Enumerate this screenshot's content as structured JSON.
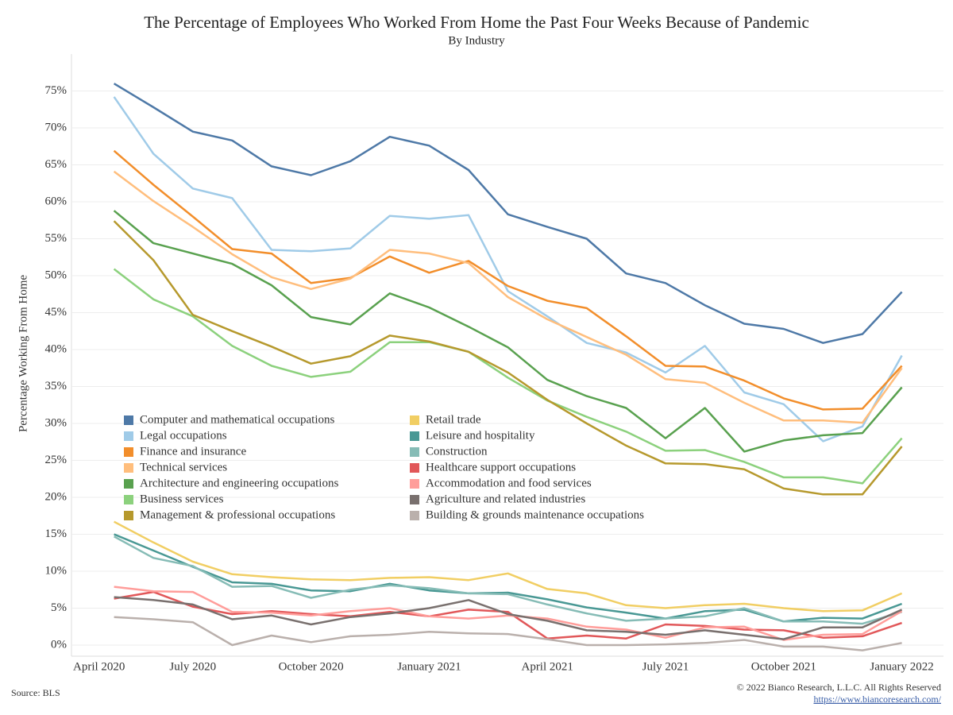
{
  "chart_data": {
    "type": "line",
    "title": "The Percentage of Employees Who Worked From Home the Past Four Weeks Because of Pandemic",
    "subtitle": "By Industry",
    "y_label": "Percentage Working From Home",
    "source": "Source: BLS",
    "copyright": "© 2022 Bianco Research, L.L.C. All Rights Reserved",
    "url": "https://www.biancoresearch.com/",
    "categories": [
      "April 2020",
      null,
      null,
      "July 2020",
      null,
      null,
      "October 2020",
      null,
      null,
      "January 2021",
      null,
      null,
      "April 2021",
      null,
      null,
      "July 2021",
      null,
      null,
      "October 2021",
      null,
      null,
      "January 2022"
    ],
    "ylim": [
      -1.5,
      80
    ],
    "yticks": [
      {
        "value": 0,
        "label": "0%"
      },
      {
        "value": 5,
        "label": "5%"
      },
      {
        "value": 10,
        "label": "10%"
      },
      {
        "value": 15,
        "label": "15%"
      },
      {
        "value": 20,
        "label": "20%"
      },
      {
        "value": 25,
        "label": "25%"
      },
      {
        "value": 30,
        "label": "30%"
      },
      {
        "value": 35,
        "label": "35%"
      },
      {
        "value": 40,
        "label": "40%"
      },
      {
        "value": 45,
        "label": "45%"
      },
      {
        "value": 50,
        "label": "50%"
      },
      {
        "value": 55,
        "label": "55%"
      },
      {
        "value": 60,
        "label": "60%"
      },
      {
        "value": 65,
        "label": "65%"
      },
      {
        "value": 70,
        "label": "70%"
      },
      {
        "value": 75,
        "label": "75%"
      }
    ],
    "grid": true,
    "series": [
      {
        "name": "Computer and mathematical occupations",
        "color": "#4e79a7",
        "values": [
          null,
          76.0,
          72.8,
          69.5,
          68.3,
          64.8,
          63.6,
          65.5,
          68.8,
          67.6,
          64.3,
          58.3,
          56.6,
          55.0,
          50.3,
          49.0,
          46.0,
          43.5,
          42.8,
          40.9,
          42.1,
          47.8
        ]
      },
      {
        "name": "Legal occupations",
        "color": "#a0cbe8",
        "values": [
          null,
          74.2,
          66.5,
          61.8,
          60.5,
          53.5,
          53.3,
          53.7,
          58.1,
          57.7,
          58.2,
          47.9,
          44.5,
          40.9,
          39.6,
          36.9,
          40.5,
          34.2,
          32.6,
          27.6,
          29.6,
          39.2
        ]
      },
      {
        "name": "Finance and insurance",
        "color": "#f28e2b",
        "values": [
          null,
          66.9,
          62.3,
          58.0,
          53.6,
          53.0,
          49.0,
          49.7,
          52.6,
          50.4,
          52.0,
          48.6,
          46.6,
          45.6,
          41.8,
          37.8,
          37.7,
          35.8,
          33.4,
          31.9,
          32.0,
          37.8
        ]
      },
      {
        "name": "Technical services",
        "color": "#ffbe7d",
        "values": [
          null,
          64.1,
          60.1,
          56.6,
          52.9,
          49.8,
          48.2,
          49.6,
          53.5,
          53.0,
          51.7,
          47.1,
          44.1,
          41.7,
          39.3,
          36.0,
          35.5,
          32.8,
          30.4,
          30.4,
          30.1,
          37.5
        ]
      },
      {
        "name": "Architecture and engineering occupations",
        "color": "#59a14f",
        "values": [
          null,
          58.8,
          54.4,
          53.0,
          51.6,
          48.7,
          44.4,
          43.4,
          47.6,
          45.7,
          43.1,
          40.3,
          35.9,
          33.7,
          32.1,
          28.0,
          32.1,
          26.2,
          27.7,
          28.4,
          28.7,
          34.9
        ]
      },
      {
        "name": "Business services",
        "color": "#8cd17d",
        "values": [
          null,
          50.9,
          46.8,
          44.5,
          40.5,
          37.8,
          36.3,
          37.0,
          41.0,
          41.0,
          39.7,
          36.2,
          33.1,
          30.9,
          28.9,
          26.3,
          26.4,
          24.8,
          22.7,
          22.7,
          21.9,
          28.0
        ]
      },
      {
        "name": "Management & professional occupations",
        "color": "#b6992d",
        "values": [
          null,
          57.4,
          52.1,
          44.7,
          42.5,
          40.4,
          38.1,
          39.1,
          41.9,
          41.1,
          39.7,
          36.9,
          33.2,
          30.0,
          27.0,
          24.6,
          24.5,
          23.8,
          21.2,
          20.4,
          20.4,
          26.9
        ]
      },
      {
        "name": "Retail trade",
        "color": "#f1ce63",
        "values": [
          null,
          16.7,
          13.9,
          11.3,
          9.6,
          9.2,
          8.9,
          8.8,
          9.1,
          9.2,
          8.8,
          9.7,
          7.6,
          7.0,
          5.4,
          5.0,
          5.4,
          5.6,
          5.0,
          4.6,
          4.7,
          7.0
        ]
      },
      {
        "name": "Leisure and hospitality",
        "color": "#499894",
        "values": [
          null,
          15.0,
          12.8,
          10.6,
          8.5,
          8.3,
          7.4,
          7.3,
          8.3,
          7.4,
          7.0,
          7.1,
          6.2,
          5.1,
          4.4,
          3.6,
          4.6,
          4.8,
          3.2,
          3.7,
          3.6,
          5.6
        ]
      },
      {
        "name": "Construction",
        "color": "#86bcb6",
        "values": [
          null,
          14.7,
          11.8,
          10.7,
          7.9,
          8.0,
          6.4,
          7.5,
          8.1,
          7.7,
          7.0,
          6.9,
          5.5,
          4.3,
          3.3,
          3.6,
          3.9,
          5.0,
          3.2,
          3.2,
          2.9,
          4.5
        ]
      },
      {
        "name": "Healthcare support occupations",
        "color": "#e15759",
        "values": [
          null,
          6.3,
          7.2,
          5.2,
          4.2,
          4.6,
          4.2,
          3.9,
          4.5,
          3.9,
          4.8,
          4.5,
          0.9,
          1.3,
          0.9,
          2.8,
          2.6,
          2.1,
          2.0,
          1.0,
          1.2,
          3.0
        ]
      },
      {
        "name": "Accommodation and food services",
        "color": "#ff9d9a",
        "values": [
          null,
          7.9,
          7.3,
          7.2,
          4.5,
          4.4,
          4.0,
          4.6,
          5.0,
          3.9,
          3.6,
          4.0,
          3.6,
          2.5,
          2.1,
          1.0,
          2.4,
          2.5,
          0.7,
          1.4,
          1.5,
          4.6
        ]
      },
      {
        "name": "Agriculture and related industries",
        "color": "#79706e",
        "values": [
          null,
          6.5,
          6.1,
          5.5,
          3.5,
          4.0,
          2.8,
          3.8,
          4.3,
          5.0,
          6.1,
          4.2,
          3.3,
          2.0,
          1.8,
          1.4,
          2.0,
          1.4,
          0.8,
          2.4,
          2.4,
          4.8
        ]
      },
      {
        "name": "Building & grounds maintenance occupations",
        "color": "#bab0ac",
        "values": [
          null,
          3.8,
          3.5,
          3.1,
          0.0,
          1.3,
          0.4,
          1.2,
          1.4,
          1.8,
          1.6,
          1.5,
          0.8,
          0.0,
          0.0,
          0.1,
          0.3,
          0.7,
          -0.2,
          -0.2,
          -0.7,
          0.3
        ]
      }
    ]
  }
}
